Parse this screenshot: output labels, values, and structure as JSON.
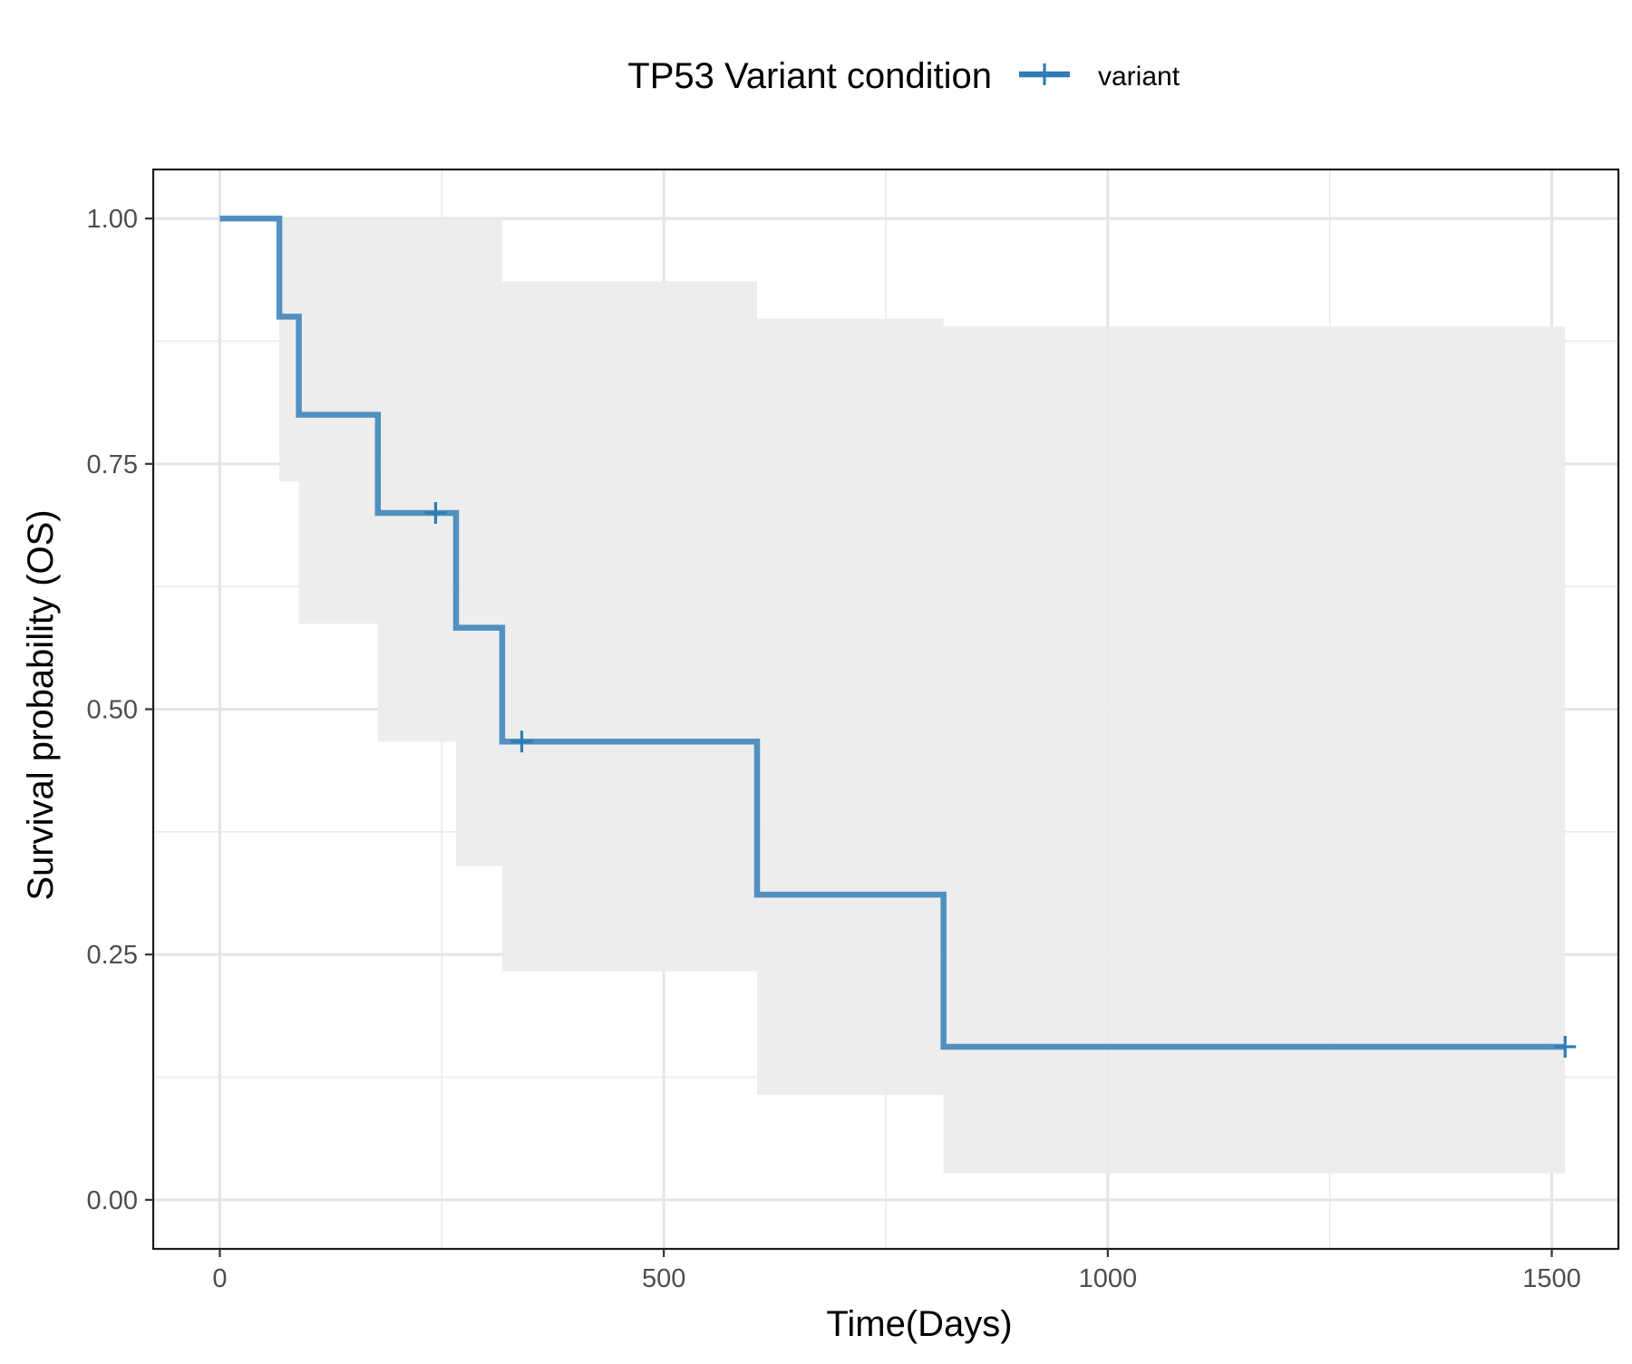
{
  "chart_data": {
    "type": "line",
    "subtype": "kaplan-meier-step",
    "xlabel": "Time(Days)",
    "ylabel": "Survival probability (OS)",
    "xlim": [
      -75,
      1575
    ],
    "ylim": [
      -0.05,
      1.05
    ],
    "x_ticks": [
      0,
      500,
      1000,
      1500
    ],
    "x_tick_labels": [
      "0",
      "500",
      "1000",
      "1500"
    ],
    "y_ticks": [
      0,
      0.25,
      0.5,
      0.75,
      1.0
    ],
    "y_tick_labels": [
      "0.00",
      "0.25",
      "0.50",
      "0.75",
      "1.00"
    ],
    "grid": true,
    "legend": {
      "position": "top",
      "title": "TP53 Variant condition",
      "entries": [
        "variant"
      ]
    },
    "series": [
      {
        "name": "variant",
        "color": "#2e7bb5",
        "steps": [
          {
            "x": 0,
            "y": 1.0
          },
          {
            "x": 67,
            "y": 0.9
          },
          {
            "x": 89,
            "y": 0.8
          },
          {
            "x": 178,
            "y": 0.7
          },
          {
            "x": 266,
            "y": 0.583
          },
          {
            "x": 318,
            "y": 0.467
          },
          {
            "x": 605,
            "y": 0.311
          },
          {
            "x": 815,
            "y": 0.156
          }
        ],
        "end_x": 1515,
        "censor_marks": [
          {
            "x": 243,
            "y": 0.7
          },
          {
            "x": 340,
            "y": 0.467
          },
          {
            "x": 1515,
            "y": 0.156
          }
        ],
        "confidence_band": [
          {
            "x": 0,
            "lower": 1.0,
            "upper": 1.0
          },
          {
            "x": 67,
            "lower": 0.732,
            "upper": 1.0
          },
          {
            "x": 89,
            "lower": 0.587,
            "upper": 1.0
          },
          {
            "x": 178,
            "lower": 0.467,
            "upper": 1.0
          },
          {
            "x": 266,
            "lower": 0.34,
            "upper": 1.0
          },
          {
            "x": 318,
            "lower": 0.233,
            "upper": 0.936
          },
          {
            "x": 605,
            "lower": 0.107,
            "upper": 0.898
          },
          {
            "x": 815,
            "lower": 0.027,
            "upper": 0.89
          }
        ],
        "band_color": "#ebebeb"
      }
    ]
  }
}
